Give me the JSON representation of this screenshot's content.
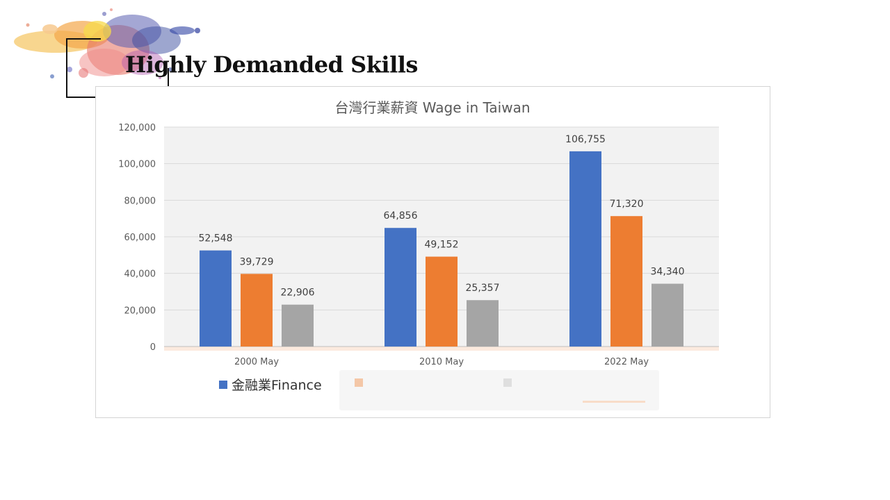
{
  "slide": {
    "title": "Highly Demanded Skills"
  },
  "chart_data": {
    "type": "bar",
    "title": "台灣行業薪資 Wage in Taiwan",
    "categories": [
      "2000 May",
      "2010 May",
      "2022 May"
    ],
    "series": [
      {
        "name": "金融業Finance",
        "color": "#4472c4",
        "values": [
          52548,
          64856,
          106755
        ]
      },
      {
        "values": [
          39729,
          49152,
          71320
        ],
        "color": "#ed7d31"
      },
      {
        "values": [
          22906,
          25357,
          34340
        ],
        "color": "#a5a5a5"
      }
    ],
    "value_labels": [
      [
        "52,548",
        "64,856",
        "106,755"
      ],
      [
        "39,729",
        "49,152",
        "71,320"
      ],
      [
        "22,906",
        "25,357",
        "34,340"
      ]
    ],
    "ylim": [
      0,
      120000
    ],
    "yticks": [
      0,
      20000,
      40000,
      60000,
      80000,
      100000,
      120000
    ],
    "ytick_labels": [
      "0",
      "20,000",
      "40,000",
      "60,000",
      "80,000",
      "100,000",
      "120,000"
    ],
    "grid": true,
    "legend": {
      "position": "bottom"
    }
  }
}
